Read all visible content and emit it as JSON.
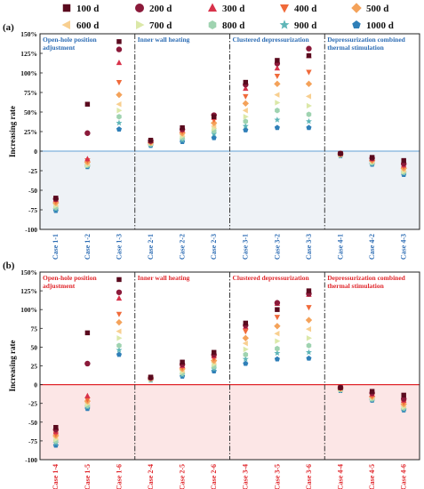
{
  "legend": {
    "entries": [
      {
        "label": "100 d",
        "color": "#5a0a1e",
        "shape": "square"
      },
      {
        "label": "200 d",
        "color": "#8b1a3a",
        "shape": "circle"
      },
      {
        "label": "300 d",
        "color": "#d8324a",
        "shape": "triangle-up"
      },
      {
        "label": "400 d",
        "color": "#f06a3a",
        "shape": "triangle-down"
      },
      {
        "label": "500 d",
        "color": "#f4a25a",
        "shape": "diamond"
      },
      {
        "label": "600 d",
        "color": "#f8cf90",
        "shape": "triangle-left"
      },
      {
        "label": "700 d",
        "color": "#dbe8a8",
        "shape": "triangle-right"
      },
      {
        "label": "800 d",
        "color": "#9fd3b0",
        "shape": "hexagon"
      },
      {
        "label": "900 d",
        "color": "#5fb6b8",
        "shape": "star"
      },
      {
        "label": "1000 d",
        "color": "#2f7fb8",
        "shape": "pentagon"
      }
    ]
  },
  "chart_data": [
    {
      "type": "scatter",
      "panel_label": "(a)",
      "ylabel": "Increasing rate",
      "ylim": [
        -100,
        150
      ],
      "yticks": [
        "-100",
        "-75",
        "-50",
        "-25",
        "0",
        "25%",
        "50%",
        "75%",
        "100%",
        "125%",
        "150%"
      ],
      "ytick_values": [
        -100,
        -75,
        -50,
        -25,
        0,
        25,
        50,
        75,
        100,
        125,
        150
      ],
      "categories": [
        "Case 1-1",
        "Case 1-2",
        "Case 1-3",
        "Case 2-1",
        "Case 2-2",
        "Case 2-3",
        "Case 3-1",
        "Case 3-2",
        "Case 3-3",
        "Case 4-1",
        "Case 4-2",
        "Case 4-3"
      ],
      "groups": [
        {
          "label": "Open-hole position adjustment",
          "lines": [
            "Open-hole position",
            "adjustment"
          ]
        },
        {
          "label": "Inner wall heating",
          "lines": [
            "Inner wall heating"
          ]
        },
        {
          "label": "Clustered depressurization",
          "lines": [
            "Clustered depressurization"
          ]
        },
        {
          "label": "Depressurization combined thermal stimulation",
          "lines": [
            "Depressurization combined",
            "thermal stimulation"
          ]
        }
      ],
      "label_color": "#2e6db4",
      "zero_line_color": "#7fb2dc",
      "shade_color": "#eef2f6",
      "series": [
        {
          "name": "100 d",
          "values": [
            -60,
            60,
            140,
            14,
            30,
            44,
            88,
            116,
            122,
            -3,
            -8,
            -12
          ]
        },
        {
          "name": "200 d",
          "values": [
            -61,
            23,
            130,
            13,
            28,
            46,
            85,
            112,
            131,
            -3,
            -9,
            -16
          ]
        },
        {
          "name": "300 d",
          "values": [
            -62,
            -10,
            113,
            13,
            27,
            43,
            80,
            106,
            122,
            -3,
            -10,
            -18
          ]
        },
        {
          "name": "400 d",
          "values": [
            -64,
            -12,
            88,
            12,
            25,
            40,
            70,
            96,
            101,
            -4,
            -11,
            -20
          ]
        },
        {
          "name": "500 d",
          "values": [
            -66,
            -14,
            72,
            11,
            23,
            36,
            61,
            86,
            86,
            -4,
            -12,
            -22
          ]
        },
        {
          "name": "600 d",
          "values": [
            -68,
            -16,
            60,
            10,
            21,
            32,
            52,
            72,
            70,
            -4,
            -13,
            -24
          ]
        },
        {
          "name": "700 d",
          "values": [
            -70,
            -18,
            52,
            10,
            19,
            29,
            44,
            62,
            58,
            -5,
            -14,
            -26
          ]
        },
        {
          "name": "800 d",
          "values": [
            -72,
            -18,
            44,
            9,
            17,
            26,
            38,
            52,
            47,
            -5,
            -15,
            -27
          ]
        },
        {
          "name": "900 d",
          "values": [
            -74,
            -19,
            36,
            8,
            14,
            22,
            32,
            40,
            38,
            -5,
            -16,
            -28
          ]
        },
        {
          "name": "1000 d",
          "values": [
            -76,
            -20,
            28,
            7,
            12,
            17,
            27,
            30,
            30,
            -6,
            -17,
            -30
          ]
        }
      ]
    },
    {
      "type": "scatter",
      "panel_label": "(b)",
      "ylabel": "Increasing rate",
      "ylim": [
        -100,
        150
      ],
      "yticks": [
        "-100",
        "-75",
        "-50",
        "-25",
        "0",
        "25",
        "50",
        "75",
        "100%",
        "125%",
        "150%"
      ],
      "ytick_values": [
        -100,
        -75,
        -50,
        -25,
        0,
        25,
        50,
        75,
        100,
        125,
        150
      ],
      "categories": [
        "Case 1-4",
        "Case 1-5",
        "Case 1-6",
        "Case 2-4",
        "Case 2-5",
        "Case 2-6",
        "Case 3-4",
        "Case 3-5",
        "Case 3-6",
        "Case 4-4",
        "Case 4-5",
        "Case 4-6"
      ],
      "groups": [
        {
          "label": "Open-hole position adjustment",
          "lines": [
            "Open-hole position",
            "adjustment"
          ]
        },
        {
          "label": "Inner wall heating",
          "lines": [
            "Inner wall heating"
          ]
        },
        {
          "label": "Clustered depressurization",
          "lines": [
            "Clustered depressurization"
          ]
        },
        {
          "label": "Depressurization combined thermal stimulation",
          "lines": [
            "Depressurization combined",
            "thermal stimulation"
          ]
        }
      ],
      "label_color": "#e0262b",
      "zero_line_color": "#e0262b",
      "shade_color": "#fce6e6",
      "series": [
        {
          "name": "100 d",
          "values": [
            -57,
            69,
            140,
            10,
            30,
            43,
            82,
            100,
            125,
            -4,
            -9,
            -14
          ]
        },
        {
          "name": "200 d",
          "values": [
            -60,
            28,
            123,
            9,
            27,
            40,
            79,
            109,
            121,
            -4,
            -11,
            -19
          ]
        },
        {
          "name": "300 d",
          "values": [
            -63,
            -15,
            115,
            9,
            25,
            38,
            77,
            108,
            120,
            -4,
            -13,
            -21
          ]
        },
        {
          "name": "400 d",
          "values": [
            -66,
            -20,
            94,
            9,
            23,
            35,
            71,
            90,
            103,
            -5,
            -15,
            -24
          ]
        },
        {
          "name": "500 d",
          "values": [
            -68,
            -22,
            83,
            8,
            21,
            32,
            62,
            78,
            86,
            -5,
            -16,
            -26
          ]
        },
        {
          "name": "600 d",
          "values": [
            -70,
            -24,
            71,
            8,
            19,
            30,
            55,
            68,
            74,
            -6,
            -17,
            -28
          ]
        },
        {
          "name": "700 d",
          "values": [
            -73,
            -26,
            62,
            7,
            17,
            27,
            47,
            58,
            62,
            -6,
            -18,
            -30
          ]
        },
        {
          "name": "800 d",
          "values": [
            -75,
            -28,
            52,
            7,
            15,
            24,
            40,
            48,
            52,
            -7,
            -19,
            -31
          ]
        },
        {
          "name": "900 d",
          "values": [
            -78,
            -30,
            46,
            6,
            13,
            21,
            34,
            42,
            43,
            -7,
            -20,
            -33
          ]
        },
        {
          "name": "1000 d",
          "values": [
            -81,
            -32,
            40,
            6,
            11,
            18,
            28,
            34,
            35,
            -8,
            -21,
            -34
          ]
        }
      ]
    }
  ]
}
